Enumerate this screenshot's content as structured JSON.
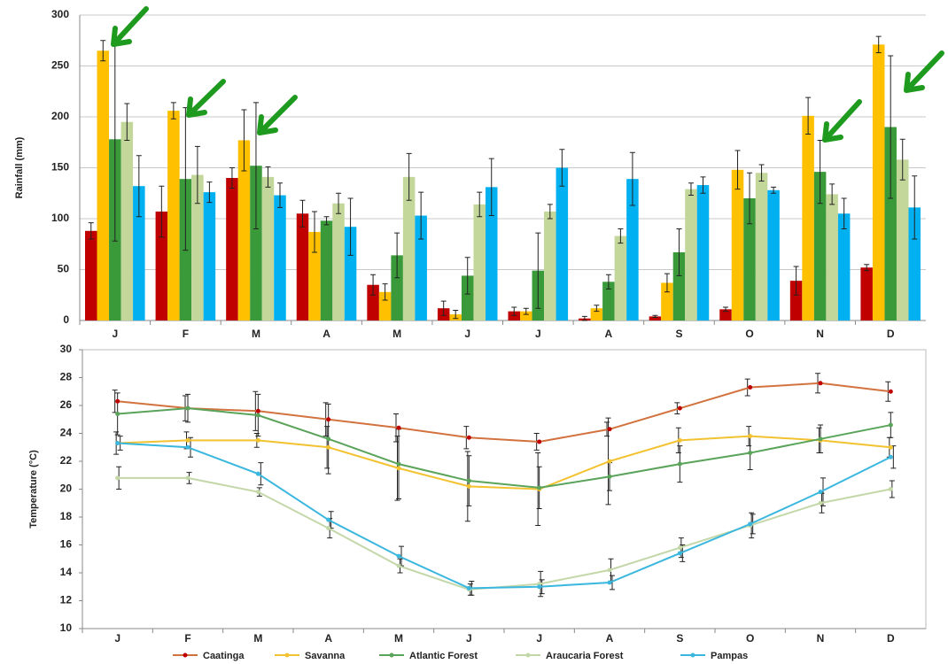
{
  "chart_data": [
    {
      "type": "bar",
      "y_label": "Rainfall (mm)",
      "categories": [
        "J",
        "F",
        "M",
        "A",
        "M",
        "J",
        "J",
        "A",
        "S",
        "O",
        "N",
        "D"
      ],
      "ylim": [
        0,
        300
      ],
      "yticks": [
        0,
        50,
        100,
        150,
        200,
        250,
        300
      ],
      "grid": true,
      "series": [
        {
          "name": "Caatinga",
          "color": "#c00000",
          "values": [
            88,
            107,
            140,
            105,
            35,
            12,
            9,
            2,
            4,
            11,
            39,
            52
          ],
          "errors": [
            8,
            25,
            10,
            13,
            10,
            7,
            4,
            2,
            1,
            2,
            14,
            3
          ]
        },
        {
          "name": "Savanna",
          "color": "#ffc000",
          "values": [
            265,
            206,
            177,
            87,
            28,
            6,
            9,
            12,
            37,
            148,
            201,
            271
          ],
          "errors": [
            10,
            8,
            30,
            20,
            8,
            4,
            3,
            3,
            9,
            19,
            18,
            8
          ]
        },
        {
          "name": "Atlantic Forest",
          "color": "#3a9a3a",
          "values": [
            178,
            139,
            152,
            98,
            64,
            44,
            49,
            38,
            67,
            120,
            146,
            190
          ],
          "errors": [
            100,
            70,
            62,
            4,
            22,
            18,
            37,
            7,
            23,
            25,
            31,
            70
          ]
        },
        {
          "name": "Araucaria Forest",
          "color": "#c4d79b",
          "values": [
            195,
            143,
            141,
            115,
            141,
            114,
            107,
            83,
            129,
            145,
            124,
            158
          ],
          "errors": [
            18,
            28,
            10,
            10,
            23,
            12,
            7,
            7,
            6,
            8,
            10,
            20
          ]
        },
        {
          "name": "Pampas",
          "color": "#00b0f0",
          "values": [
            132,
            126,
            123,
            92,
            103,
            131,
            150,
            139,
            133,
            128,
            105,
            111
          ],
          "errors": [
            30,
            10,
            12,
            28,
            23,
            28,
            18,
            26,
            8,
            3,
            15,
            31
          ]
        }
      ]
    },
    {
      "type": "line",
      "y_label": "Temperature (°C)",
      "categories": [
        "J",
        "F",
        "M",
        "A",
        "M",
        "J",
        "J",
        "A",
        "S",
        "O",
        "N",
        "D"
      ],
      "ylim": [
        10,
        30
      ],
      "yticks": [
        10,
        12,
        14,
        16,
        18,
        20,
        22,
        24,
        26,
        28,
        30
      ],
      "grid": false,
      "legend": "bottom",
      "series": [
        {
          "name": "Caatinga",
          "color": "#d2733f",
          "values": [
            26.3,
            25.8,
            25.6,
            25.0,
            24.4,
            23.7,
            23.4,
            24.3,
            25.8,
            27.3,
            27.6,
            27.0
          ],
          "errors": [
            0.8,
            0.9,
            1.4,
            1.2,
            1.0,
            0.8,
            0.6,
            0.5,
            0.4,
            0.6,
            0.7,
            0.7
          ]
        },
        {
          "name": "Savanna",
          "color": "#f2c230",
          "values": [
            23.3,
            23.5,
            23.5,
            23.0,
            21.5,
            20.2,
            20.0,
            22.0,
            23.5,
            23.8,
            23.5,
            23.0
          ],
          "errors": [
            0.8,
            0.6,
            0.5,
            1.5,
            2.3,
            2.5,
            2.6,
            3.1,
            0.9,
            0.7,
            0.9,
            0.7
          ]
        },
        {
          "name": "Atlantic Forest",
          "color": "#5aa35a",
          "values": [
            25.4,
            25.8,
            25.3,
            23.6,
            21.8,
            20.6,
            20.1,
            20.9,
            21.8,
            22.6,
            23.6,
            24.6
          ],
          "errors": [
            1.5,
            1.0,
            1.5,
            2.5,
            2.5,
            1.8,
            1.5,
            1.0,
            1.3,
            1.2,
            1.0,
            0.9
          ]
        },
        {
          "name": "Araucaria Forest",
          "color": "#c4d7a8",
          "values": [
            20.8,
            20.8,
            19.8,
            17.2,
            14.5,
            12.8,
            13.2,
            14.2,
            15.8,
            17.4,
            19.0,
            20.0
          ],
          "errors": [
            0.8,
            0.4,
            0.3,
            0.7,
            0.5,
            0.4,
            0.9,
            0.8,
            0.7,
            0.9,
            0.7,
            0.6
          ]
        },
        {
          "name": "Pampas",
          "color": "#3ab7de",
          "values": [
            23.3,
            23.0,
            21.1,
            17.8,
            15.2,
            12.9,
            13.0,
            13.3,
            15.4,
            17.5,
            19.8,
            22.3
          ],
          "errors": [
            0.5,
            0.7,
            0.8,
            0.6,
            0.7,
            0.5,
            0.5,
            0.5,
            0.6,
            0.7,
            1.0,
            0.8
          ]
        }
      ]
    }
  ]
}
